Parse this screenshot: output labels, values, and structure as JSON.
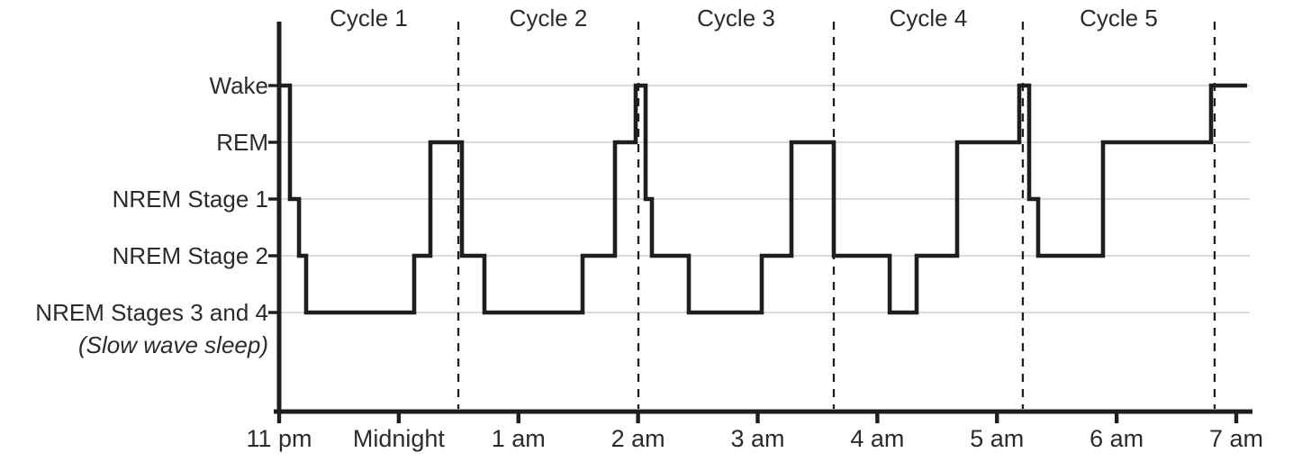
{
  "chart_data": {
    "type": "line",
    "subtype": "hypnogram-step",
    "title": "",
    "xlabel": "",
    "ylabel": "",
    "x_unit": "hours after 11 pm",
    "x_range": [
      0,
      8.09
    ],
    "grid": "horizontal-only",
    "x_ticks": [
      {
        "label": "11 pm",
        "t": 0
      },
      {
        "label": "Midnight",
        "t": 1
      },
      {
        "label": "1 am",
        "t": 2
      },
      {
        "label": "2 am",
        "t": 3
      },
      {
        "label": "3 am",
        "t": 4
      },
      {
        "label": "4 am",
        "t": 5
      },
      {
        "label": "5 am",
        "t": 6
      },
      {
        "label": "6 am",
        "t": 7
      },
      {
        "label": "7 am",
        "t": 8
      }
    ],
    "y_levels": [
      {
        "key": "wake",
        "label": "Wake"
      },
      {
        "key": "rem",
        "label": "REM"
      },
      {
        "key": "n1",
        "label": "NREM Stage 1"
      },
      {
        "key": "n2",
        "label": "NREM Stage 2"
      },
      {
        "key": "n34",
        "label": "NREM Stages 3 and 4",
        "sublabel": "(Slow wave sleep)"
      }
    ],
    "segments": [
      {
        "t0": 0.0,
        "t1": 0.09,
        "stage": "wake"
      },
      {
        "t0": 0.09,
        "t1": 0.166,
        "stage": "n1"
      },
      {
        "t0": 0.166,
        "t1": 0.226,
        "stage": "n2"
      },
      {
        "t0": 0.226,
        "t1": 1.129,
        "stage": "n34"
      },
      {
        "t0": 1.129,
        "t1": 1.264,
        "stage": "n2"
      },
      {
        "t0": 1.264,
        "t1": 1.528,
        "stage": "rem"
      },
      {
        "t0": 1.528,
        "t1": 1.716,
        "stage": "n2"
      },
      {
        "t0": 1.716,
        "t1": 2.536,
        "stage": "n34"
      },
      {
        "t0": 2.536,
        "t1": 2.807,
        "stage": "n2"
      },
      {
        "t0": 2.807,
        "t1": 2.98,
        "stage": "rem"
      },
      {
        "t0": 2.98,
        "t1": 3.063,
        "stage": "wake"
      },
      {
        "t0": 3.063,
        "t1": 3.116,
        "stage": "n1"
      },
      {
        "t0": 3.116,
        "t1": 3.424,
        "stage": "n2"
      },
      {
        "t0": 3.424,
        "t1": 4.034,
        "stage": "n34"
      },
      {
        "t0": 4.034,
        "t1": 4.282,
        "stage": "n2"
      },
      {
        "t0": 4.282,
        "t1": 4.636,
        "stage": "rem"
      },
      {
        "t0": 4.636,
        "t1": 5.103,
        "stage": "n2"
      },
      {
        "t0": 5.103,
        "t1": 5.328,
        "stage": "n34"
      },
      {
        "t0": 5.328,
        "t1": 5.667,
        "stage": "n2"
      },
      {
        "t0": 5.667,
        "t1": 6.186,
        "stage": "rem"
      },
      {
        "t0": 6.186,
        "t1": 6.269,
        "stage": "wake"
      },
      {
        "t0": 6.269,
        "t1": 6.344,
        "stage": "n1"
      },
      {
        "t0": 6.344,
        "t1": 6.886,
        "stage": "n2"
      },
      {
        "t0": 6.886,
        "t1": 7.789,
        "stage": "rem"
      },
      {
        "t0": 7.789,
        "t1": 8.09,
        "stage": "wake"
      }
    ],
    "cycles": [
      {
        "label": "Cycle 1",
        "t0": 0.0,
        "t1": 1.498
      },
      {
        "label": "Cycle 2",
        "t0": 1.498,
        "t1": 3.003
      },
      {
        "label": "Cycle 3",
        "t0": 3.003,
        "t1": 4.636
      },
      {
        "label": "Cycle 4",
        "t0": 4.636,
        "t1": 6.216
      },
      {
        "label": "Cycle 5",
        "t0": 6.216,
        "t1": 7.819
      }
    ],
    "legend": "none",
    "styles": {
      "line_color": "#1e1e1e",
      "axis_color": "#1e1e1e",
      "grid_color": "#c3c3c3",
      "text_color": "#2b2b2b",
      "background": "#ffffff"
    }
  }
}
